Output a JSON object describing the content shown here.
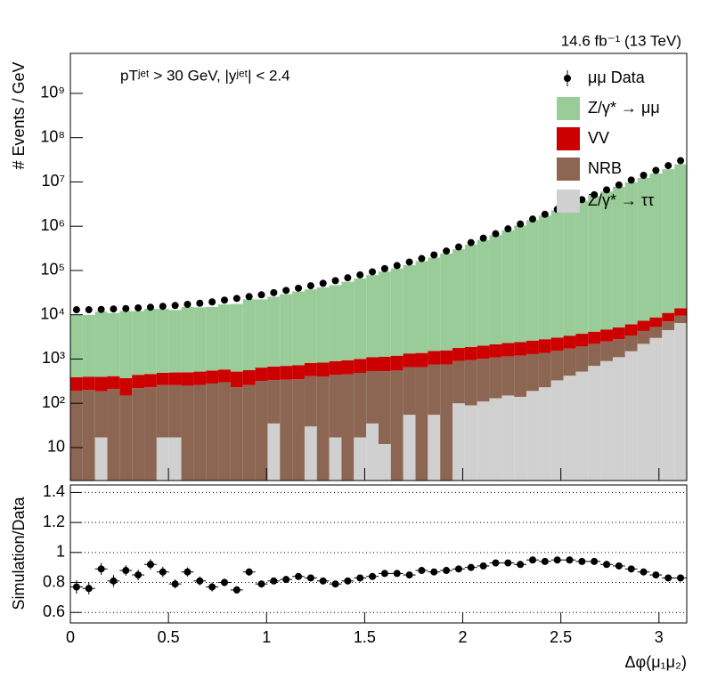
{
  "chart_data": [
    {
      "type": "stacked_histogram",
      "y_label": "# Events / GeV",
      "lumi": "14.6 fb⁻¹ (13 TeV)",
      "annotation": "pTʲᵉᵗ > 30 GeV,  |yʲᵉᵗ| < 2.4",
      "log_y": true,
      "ylim": [
        1.8,
        8000000000
      ],
      "yticks": [
        10,
        {
          "value": 100,
          "label": "10²"
        },
        {
          "value": 1000,
          "label": "10³"
        },
        {
          "value": 10000,
          "label": "10⁴"
        },
        {
          "value": 100000,
          "label": "10⁵"
        },
        {
          "value": 1000000,
          "label": "10⁶"
        },
        {
          "value": 10000000,
          "label": "10⁷"
        },
        {
          "value": 100000000,
          "label": "10⁸"
        },
        {
          "value": 1000000000,
          "label": "10⁹"
        }
      ],
      "xlim": [
        0,
        3.1416
      ],
      "bins": [
        0,
        0.0628,
        0.1257,
        0.1885,
        0.2513,
        0.3142,
        0.377,
        0.4398,
        0.5027,
        0.5655,
        0.6283,
        0.6912,
        0.754,
        0.8168,
        0.8796,
        0.9425,
        1.0053,
        1.0681,
        1.131,
        1.1938,
        1.2566,
        1.3195,
        1.3823,
        1.4451,
        1.508,
        1.5708,
        1.6336,
        1.6965,
        1.7593,
        1.8221,
        1.885,
        1.9478,
        2.0106,
        2.0735,
        2.1363,
        2.1991,
        2.2619,
        2.3248,
        2.3876,
        2.4504,
        2.5133,
        2.5761,
        2.6389,
        2.7018,
        2.7646,
        2.8274,
        2.8903,
        2.9531,
        3.0159,
        3.0788,
        3.1416
      ],
      "data": {
        "name": "μμ Data",
        "color": "#000000",
        "values": [
          13000,
          13000,
          13200,
          13500,
          13800,
          14300,
          14800,
          15500,
          16200,
          17200,
          18200,
          19500,
          21400,
          23400,
          25700,
          28200,
          31600,
          35500,
          39800,
          45200,
          51300,
          58900,
          68400,
          79400,
          93300,
          110000,
          129000,
          155000,
          186000,
          224000,
          275000,
          339000,
          427000,
          537000,
          676000,
          871000,
          1120000,
          1450000,
          1860000,
          2400000,
          3090000,
          3980000,
          5130000,
          6610000,
          8510000,
          11000000,
          14100000,
          18200000,
          23400000,
          30200000
        ]
      },
      "series": [
        {
          "name": "Z/γ* → μμ",
          "color": "#99cc99",
          "values": [
            9600,
            9500,
            11400,
            10500,
            11800,
            11700,
            13200,
            13000,
            12300,
            14500,
            14200,
            14500,
            16500,
            17000,
            21800,
            21600,
            24900,
            28400,
            32700,
            36700,
            40700,
            45600,
            54500,
            64900,
            77300,
            93500,
            110000,
            130000,
            162000,
            193000,
            240000,
            300000,
            382000,
            487000,
            627000,
            808000,
            1030000,
            1370000,
            1740000,
            2270000,
            2930000,
            3740000,
            4820000,
            6080000,
            7740000,
            9780000,
            12260000,
            15460000,
            19410000,
            25050000
          ]
        },
        {
          "name": "VV",
          "color": "#cc0000",
          "values": [
            200,
            200,
            210,
            200,
            220,
            220,
            230,
            230,
            240,
            250,
            260,
            270,
            280,
            290,
            300,
            320,
            340,
            360,
            380,
            400,
            430,
            460,
            490,
            520,
            560,
            600,
            640,
            680,
            720,
            770,
            820,
            880,
            940,
            1000,
            1070,
            1150,
            1230,
            1320,
            1420,
            1530,
            1650,
            1800,
            1950,
            2150,
            2400,
            2700,
            3000,
            3400,
            3900,
            4500
          ]
        },
        {
          "name": "NRB",
          "color": "#8c6653",
          "values": [
            190,
            200,
            170,
            210,
            150,
            220,
            230,
            240,
            240,
            250,
            260,
            280,
            300,
            230,
            260,
            320,
            300,
            340,
            350,
            380,
            400,
            420,
            450,
            470,
            500,
            520,
            550,
            600,
            650,
            700,
            750,
            800,
            850,
            900,
            950,
            1000,
            1050,
            1100,
            1150,
            1200,
            1300,
            1400,
            1500,
            1600,
            1700,
            1900,
            2100,
            2300,
            2600,
            3000
          ]
        },
        {
          "name": "Z/γ* → ττ",
          "color": "#d0d0d0",
          "values": [
            null,
            null,
            17,
            null,
            null,
            null,
            null,
            17,
            17,
            null,
            null,
            null,
            null,
            null,
            null,
            null,
            35,
            null,
            null,
            30,
            null,
            17,
            null,
            17,
            35,
            12,
            null,
            55,
            null,
            55,
            null,
            100,
            90,
            110,
            130,
            150,
            140,
            190,
            230,
            330,
            420,
            520,
            700,
            900,
            1100,
            1500,
            2200,
            3000,
            4500,
            6500
          ]
        }
      ]
    },
    {
      "type": "ratio",
      "y_label": "Simulation/Data",
      "x_label": "Δφ(μ₁μ₂)",
      "grid": true,
      "ylim": [
        0.53,
        1.45
      ],
      "yticks": [
        0.6,
        0.8,
        1,
        1.2,
        1.4
      ],
      "xticks": [
        0,
        0.5,
        1,
        1.5,
        2,
        2.5,
        3
      ],
      "values": [
        0.77,
        0.76,
        0.89,
        0.81,
        0.88,
        0.85,
        0.92,
        0.87,
        0.79,
        0.87,
        0.81,
        0.77,
        0.8,
        0.75,
        0.87,
        0.79,
        0.81,
        0.82,
        0.84,
        0.83,
        0.81,
        0.79,
        0.81,
        0.83,
        0.84,
        0.86,
        0.86,
        0.85,
        0.88,
        0.87,
        0.88,
        0.89,
        0.9,
        0.91,
        0.93,
        0.93,
        0.92,
        0.95,
        0.94,
        0.95,
        0.95,
        0.94,
        0.94,
        0.92,
        0.91,
        0.89,
        0.87,
        0.85,
        0.83,
        0.83
      ],
      "errors": [
        0.045,
        0.04,
        0.04,
        0.04,
        0.035,
        0.035,
        0.035,
        0.035,
        0.03,
        0.03,
        0.03,
        0.03,
        0.025,
        0.025,
        0.025,
        0.02,
        0.02,
        0.02,
        0.018,
        0.018,
        0.016,
        0.016,
        0.015,
        0.015,
        0.014,
        0.014,
        0.013,
        0.013,
        0.012,
        0.012,
        0.012,
        0.011,
        0.011,
        0.011,
        0.01,
        0.01,
        0.01,
        0.01,
        0.01,
        0.01,
        0.01,
        0.01,
        0.01,
        0.01,
        0.01,
        0.01,
        0.01,
        0.01,
        0.01,
        0.01
      ]
    }
  ]
}
